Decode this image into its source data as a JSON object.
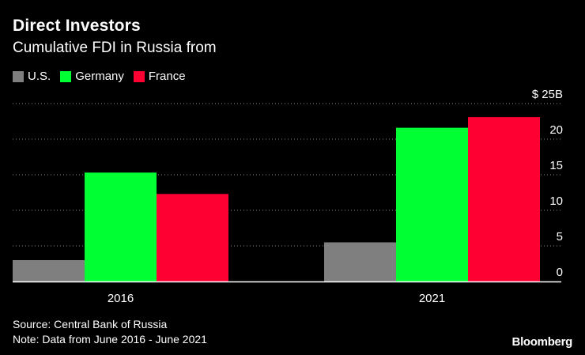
{
  "header": {
    "title": "Direct Investors",
    "subtitle": "Cumulative FDI in Russia from"
  },
  "footer": {
    "source": "Source: Central Bank of Russia",
    "note": "Note: Data from June 2016 - June 2021",
    "logo": "Bloomberg"
  },
  "chart_data": {
    "type": "bar",
    "title": "Direct Investors",
    "subtitle": "Cumulative FDI in Russia from",
    "categories": [
      "2016",
      "2021"
    ],
    "series": [
      {
        "name": "U.S.",
        "color": "#7f7f7f",
        "values": [
          3.0,
          5.5
        ]
      },
      {
        "name": "Germany",
        "color": "#00ff33",
        "values": [
          15.3,
          21.6
        ]
      },
      {
        "name": "France",
        "color": "#ff0033",
        "values": [
          12.3,
          23.1
        ]
      }
    ],
    "y_ticks": [
      {
        "value": 0,
        "label": "0"
      },
      {
        "value": 5,
        "label": "5"
      },
      {
        "value": 10,
        "label": "10"
      },
      {
        "value": 15,
        "label": "15"
      },
      {
        "value": 20,
        "label": "20"
      },
      {
        "value": 25,
        "label": "$ 25B"
      }
    ],
    "ylim": [
      0,
      25
    ],
    "y_axis_position": "right",
    "grid": true,
    "legend_position": "top-left"
  }
}
